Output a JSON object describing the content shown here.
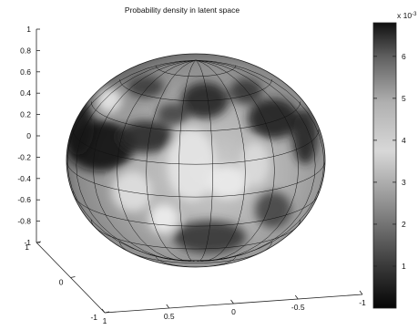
{
  "chart_data": {
    "type": "surface",
    "title": "Probability density in latent space",
    "xlabel": "",
    "ylabel": "",
    "zlabel": "",
    "z_ticks": [
      "1",
      "0.8",
      "0.6",
      "0.4",
      "0.2",
      "0",
      "-0.2",
      "-0.4",
      "-0.6",
      "-0.8",
      "-1"
    ],
    "z_range": [
      -1,
      1
    ],
    "x_ticks": [
      "1",
      "0.5",
      "0",
      "-0.5",
      "-1"
    ],
    "x_range": [
      1,
      -1
    ],
    "y_ticks": [
      "1",
      "0",
      "-1"
    ],
    "y_range": [
      1,
      -1
    ],
    "colorbar": {
      "multiplier_label": "x 10",
      "multiplier_exponent": "-3",
      "ticks": [
        "6",
        "5",
        "4",
        "3",
        "2",
        "1"
      ],
      "range": [
        0,
        6.8
      ],
      "colormap": "gray"
    },
    "surface": "unit sphere colored by probability density",
    "grid": true
  }
}
